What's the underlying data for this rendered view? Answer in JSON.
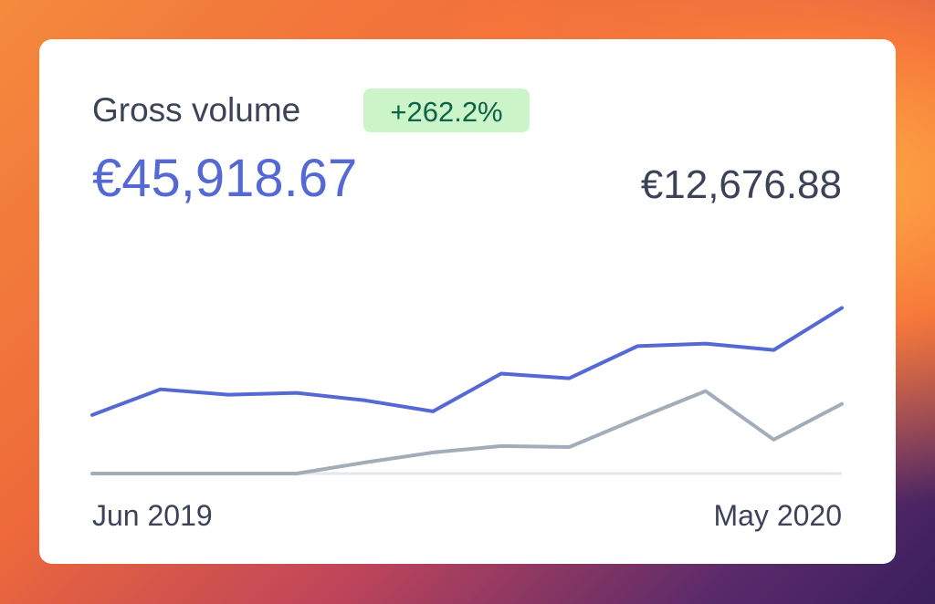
{
  "chart_data": {
    "type": "line",
    "title": "Gross volume",
    "change": "+262.2%",
    "total": "€45,918.67",
    "previous_total": "€12,676.88",
    "categories": [
      "Jun 2019",
      null,
      null,
      null,
      null,
      null,
      null,
      null,
      null,
      null,
      null,
      "May 2020"
    ],
    "series": [
      {
        "color": "#5469d4",
        "values": [
          2280,
          3280,
          3070,
          3140,
          2850,
          2420,
          3890,
          3710,
          4960,
          5060,
          4810,
          6450
        ]
      },
      {
        "color": "#a3acb9",
        "values": [
          0,
          0,
          0,
          0,
          430,
          820,
          1070,
          1030,
          2140,
          3210,
          1320,
          2710
        ]
      }
    ],
    "ylim": [
      0,
      7000
    ]
  }
}
